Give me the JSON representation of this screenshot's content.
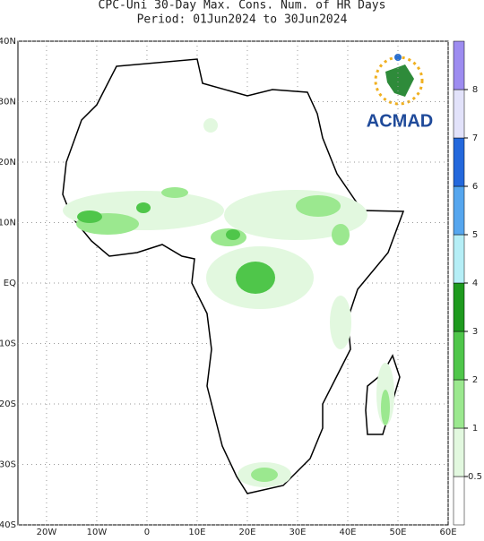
{
  "header": {
    "title": "CPC-Uni 30-Day Max. Cons. Num. of HR Days",
    "subtitle": "Period: 01Jun2024 to 30Jun2024"
  },
  "map": {
    "xlim": [
      -25.7,
      60
    ],
    "ylim": [
      -40,
      40
    ],
    "xticks": [
      {
        "value": -20,
        "label": "20W"
      },
      {
        "value": -10,
        "label": "10W"
      },
      0,
      {
        "value": 10,
        "label": "10E"
      },
      {
        "value": 20,
        "label": "20E"
      },
      {
        "value": 30,
        "label": "30E"
      },
      {
        "value": 40,
        "label": "40E"
      },
      {
        "value": 50,
        "label": "50E"
      },
      {
        "value": 60,
        "label": "60E"
      }
    ],
    "yticks": [
      {
        "value": 40,
        "label": "40N"
      },
      {
        "value": 30,
        "label": "30N"
      },
      {
        "value": 20,
        "label": "20N"
      },
      {
        "value": 10,
        "label": "10N"
      },
      {
        "value": 0,
        "label": "EQ"
      },
      {
        "value": -10,
        "label": "10S"
      },
      {
        "value": -20,
        "label": "20S"
      },
      {
        "value": -30,
        "label": "30S"
      },
      {
        "value": -40,
        "label": "40S"
      }
    ],
    "grid": true
  },
  "colorbar": {
    "labels": [
      0.5,
      1,
      2,
      3,
      4,
      5,
      6,
      7,
      8
    ],
    "colors": [
      "#ffffff",
      "#e2f8df",
      "#9be88f",
      "#4fc64a",
      "#1e9a1e",
      "#b5eef6",
      "#56a6ee",
      "#2468dc",
      "#e2e2fa",
      "#9d8cf0"
    ]
  },
  "logo": {
    "text": "ACMAD"
  }
}
